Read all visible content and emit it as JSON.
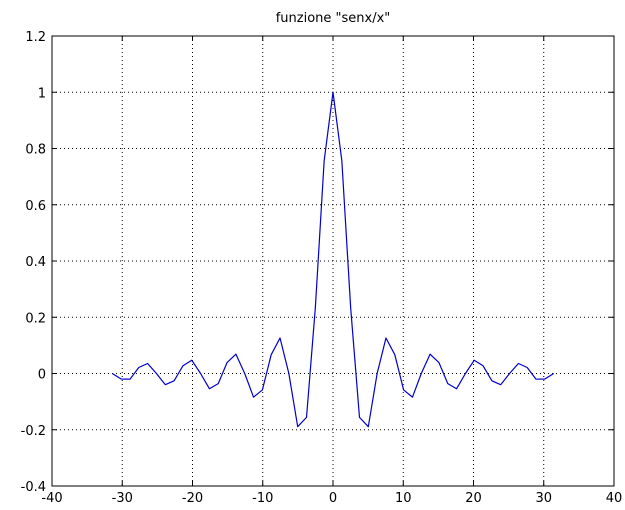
{
  "chart_data": {
    "type": "line",
    "title": "funzione \"senx/x\"",
    "xlabel": "",
    "ylabel": "",
    "xlim": [
      -40,
      40
    ],
    "ylim": [
      -0.4,
      1.2
    ],
    "x_ticks": [
      -40,
      -30,
      -20,
      -10,
      0,
      10,
      20,
      30,
      40
    ],
    "x_tick_labels": [
      "-40",
      "-30",
      "-20",
      "-10",
      "0",
      "10",
      "20",
      "30",
      "40"
    ],
    "y_ticks": [
      -0.4,
      -0.2,
      0,
      0.2,
      0.4,
      0.6,
      0.8,
      1,
      1.2
    ],
    "y_tick_labels": [
      "-0.4",
      "-0.2",
      "0",
      "0.2",
      "0.4",
      "0.6",
      "0.8",
      "1",
      "1.2"
    ],
    "grid": true,
    "legend": "none",
    "series": [
      {
        "color": "#0000cc",
        "x": [
          -31.4159,
          -30.1593,
          -28.9027,
          -27.646,
          -26.3894,
          -25.1327,
          -23.8761,
          -22.6195,
          -21.3628,
          -20.1062,
          -18.8496,
          -17.5929,
          -16.3363,
          -15.0796,
          -13.823,
          -12.5664,
          -11.3097,
          -10.0531,
          -8.7965,
          -7.5398,
          -6.2832,
          -5.0265,
          -3.7699,
          -2.5133,
          -1.2566,
          0,
          1.2566,
          2.5133,
          3.7699,
          5.0265,
          6.2832,
          7.5398,
          8.7965,
          10.0531,
          11.3097,
          12.5664,
          13.823,
          15.0796,
          16.3363,
          17.5929,
          18.8496,
          20.1062,
          21.3628,
          22.6195,
          23.8761,
          25.1327,
          26.3894,
          27.646,
          28.9027,
          30.1593,
          31.4159
        ],
        "y": [
          0,
          -0.0195,
          -0.0203,
          0.0213,
          0.0356,
          0,
          -0.0398,
          -0.0259,
          0.0275,
          0.0473,
          0,
          -0.0541,
          -0.036,
          0.039,
          0.0688,
          0,
          -0.0841,
          -0.0585,
          0.0669,
          0.1261,
          0,
          -0.1892,
          -0.1559,
          0.2339,
          0.7568,
          1,
          0.7568,
          0.2339,
          -0.1559,
          -0.1892,
          0,
          0.1261,
          0.0669,
          -0.0585,
          -0.0841,
          0,
          0.0688,
          0.039,
          -0.036,
          -0.0541,
          0,
          0.0473,
          0.0275,
          -0.0259,
          -0.0398,
          0,
          0.0356,
          0.0213,
          -0.0203,
          -0.0195,
          0
        ]
      }
    ]
  }
}
